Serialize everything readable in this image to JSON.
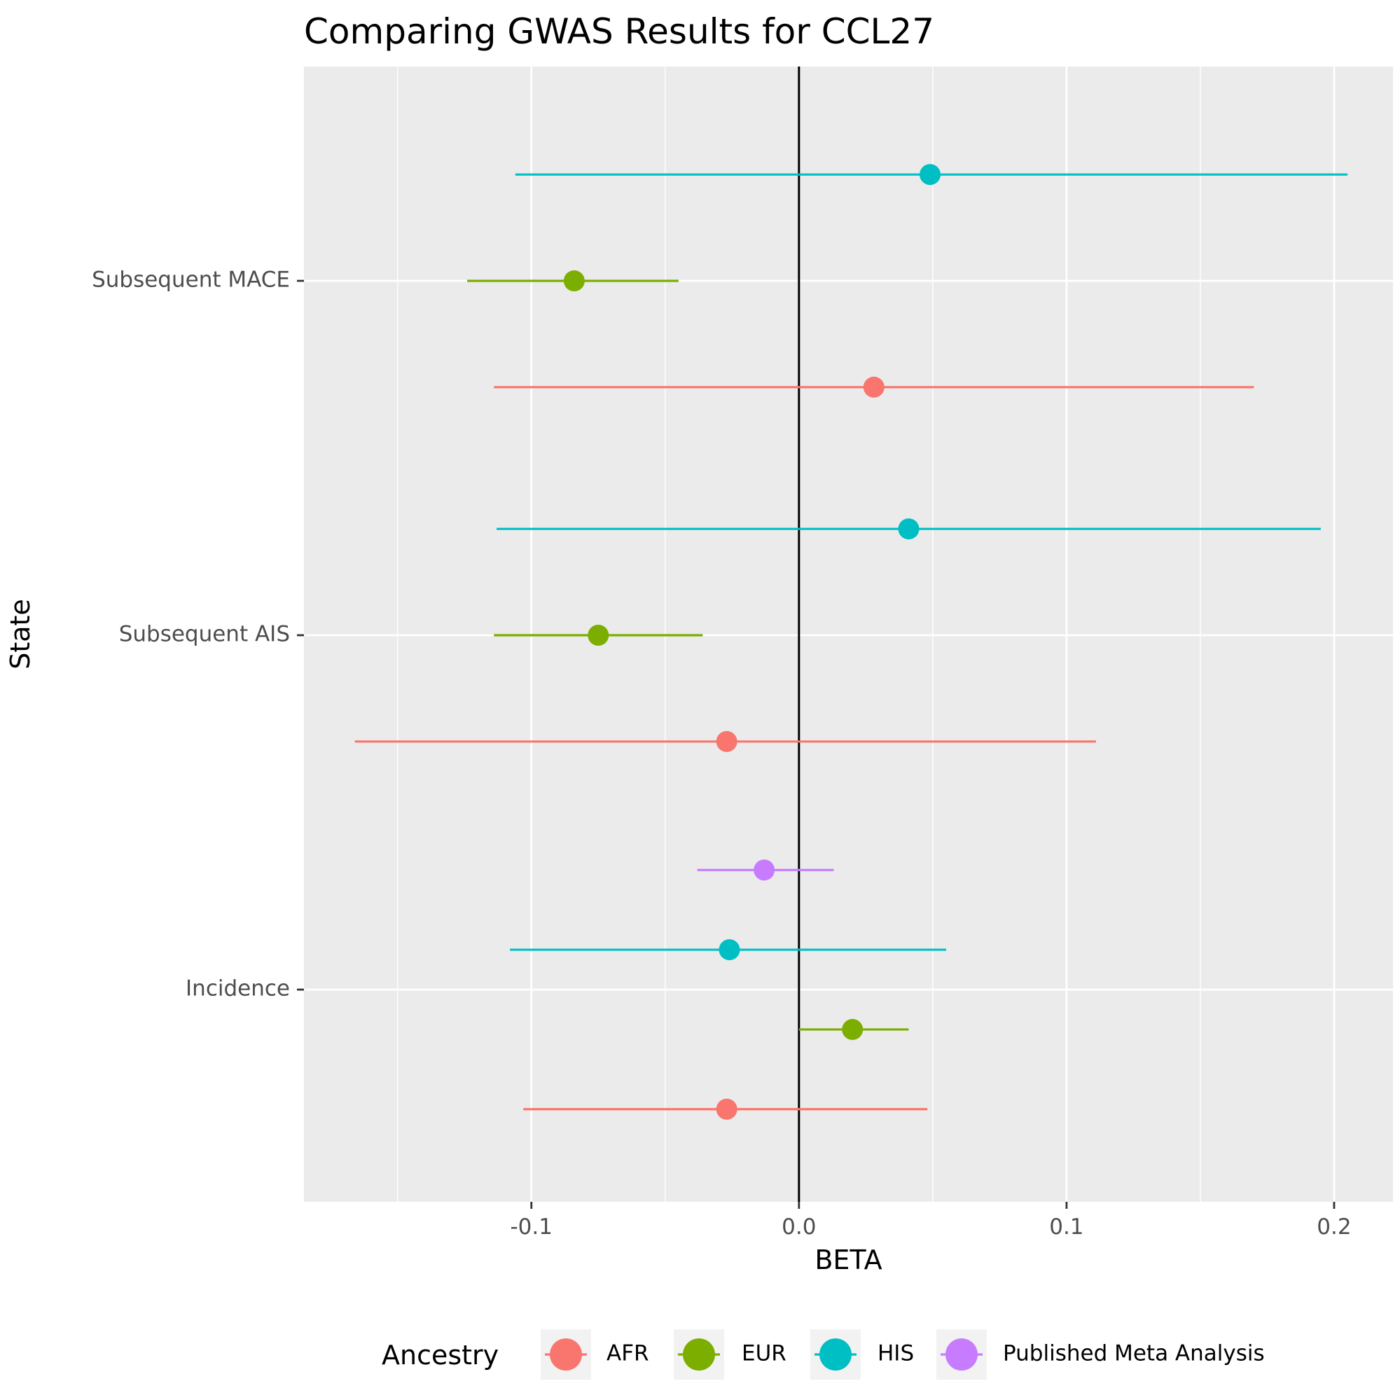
{
  "chart_data": {
    "type": "scatter",
    "subtype": "forest-plot",
    "title": "Comparing GWAS Results for CCL27",
    "xlabel": "BETA",
    "ylabel": "State",
    "xlim": [
      -0.185,
      0.222
    ],
    "x_ticks": [
      -0.1,
      0.0,
      0.1,
      0.2
    ],
    "x_tick_labels": [
      "-0.1",
      "0.0",
      "0.1",
      "0.2"
    ],
    "categories": [
      "Incidence",
      "Subsequent AIS",
      "Subsequent MACE"
    ],
    "reference_line_x": 0,
    "grid": true,
    "legend": {
      "title": "Ancestry",
      "position": "bottom",
      "entries": [
        "AFR",
        "EUR",
        "HIS",
        "Published Meta Analysis"
      ]
    },
    "series": [
      {
        "name": "AFR",
        "color": "#F8766D",
        "points": [
          {
            "category": "Incidence",
            "beta": -0.027,
            "lower": -0.103,
            "upper": 0.048
          },
          {
            "category": "Subsequent AIS",
            "beta": -0.027,
            "lower": -0.166,
            "upper": 0.111
          },
          {
            "category": "Subsequent MACE",
            "beta": 0.028,
            "lower": -0.114,
            "upper": 0.17
          }
        ]
      },
      {
        "name": "EUR",
        "color": "#7CAE00",
        "points": [
          {
            "category": "Incidence",
            "beta": 0.02,
            "lower": 0.0,
            "upper": 0.041
          },
          {
            "category": "Subsequent AIS",
            "beta": -0.075,
            "lower": -0.114,
            "upper": -0.036
          },
          {
            "category": "Subsequent MACE",
            "beta": -0.084,
            "lower": -0.124,
            "upper": -0.045
          }
        ]
      },
      {
        "name": "HIS",
        "color": "#00BFC4",
        "points": [
          {
            "category": "Incidence",
            "beta": -0.026,
            "lower": -0.108,
            "upper": 0.055
          },
          {
            "category": "Subsequent AIS",
            "beta": 0.041,
            "lower": -0.113,
            "upper": 0.195
          },
          {
            "category": "Subsequent MACE",
            "beta": 0.049,
            "lower": -0.106,
            "upper": 0.205
          }
        ]
      },
      {
        "name": "Published Meta Analysis",
        "color": "#C77CFF",
        "points": [
          {
            "category": "Incidence",
            "beta": -0.013,
            "lower": -0.038,
            "upper": 0.013
          }
        ]
      }
    ]
  }
}
